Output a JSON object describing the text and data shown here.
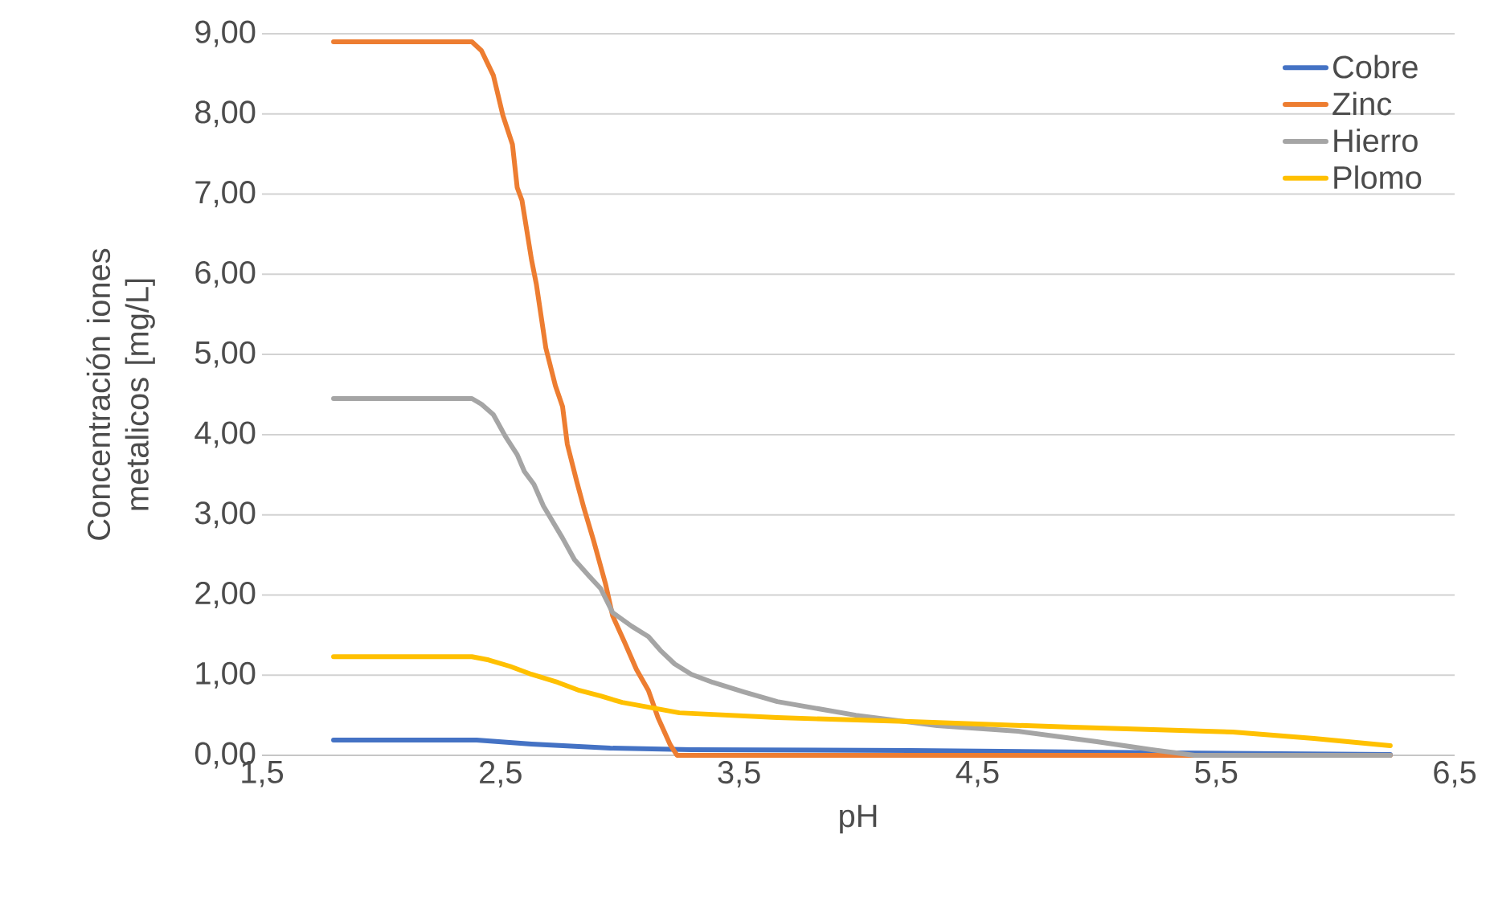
{
  "chart_data": {
    "type": "line",
    "xlabel": "pH",
    "ylabel": "Concentración iones metalicos [mg/L]",
    "xlim": [
      1.5,
      6.5
    ],
    "ylim": [
      0,
      9
    ],
    "xticks": [
      {
        "value": 1.5,
        "label": "1,5"
      },
      {
        "value": 2.5,
        "label": "2,5"
      },
      {
        "value": 3.5,
        "label": "3,5"
      },
      {
        "value": 4.5,
        "label": "4,5"
      },
      {
        "value": 5.5,
        "label": "5,5"
      },
      {
        "value": 6.5,
        "label": "6,5"
      }
    ],
    "yticks": [
      {
        "value": 0,
        "label": "0,00"
      },
      {
        "value": 1,
        "label": "1,00"
      },
      {
        "value": 2,
        "label": "2,00"
      },
      {
        "value": 3,
        "label": "3,00"
      },
      {
        "value": 4,
        "label": "4,00"
      },
      {
        "value": 5,
        "label": "5,00"
      },
      {
        "value": 6,
        "label": "6,00"
      },
      {
        "value": 7,
        "label": "7,00"
      },
      {
        "value": 8,
        "label": "8,00"
      },
      {
        "value": 9,
        "label": "9,00"
      }
    ],
    "grid": "y",
    "legend": "top right",
    "marker": "none",
    "line_style": "solid",
    "series": [
      {
        "name": "Cobre",
        "color": "#4472c4",
        "x": [
          1.8,
          2.4,
          2.63,
          2.96,
          3.3,
          4.22,
          5.34,
          6.23
        ],
        "values": [
          0.19,
          0.19,
          0.14,
          0.09,
          0.07,
          0.06,
          0.03,
          0.01
        ]
      },
      {
        "name": "Zinc",
        "color": "#ed7d31",
        "x": [
          1.8,
          2.38,
          2.42,
          2.47,
          2.51,
          2.55,
          2.57,
          2.59,
          2.63,
          2.65,
          2.69,
          2.73,
          2.76,
          2.78,
          2.82,
          2.85,
          2.89,
          2.94,
          2.97,
          3.02,
          3.07,
          3.12,
          3.16,
          3.21,
          3.24,
          3.3,
          6.23
        ],
        "values": [
          8.9,
          8.9,
          8.79,
          8.48,
          7.98,
          7.62,
          7.08,
          6.92,
          6.18,
          5.88,
          5.08,
          4.61,
          4.35,
          3.88,
          3.41,
          3.08,
          2.68,
          2.14,
          1.74,
          1.41,
          1.07,
          0.81,
          0.47,
          0.14,
          0.0,
          0.0,
          0.0
        ]
      },
      {
        "name": "Hierro",
        "color": "#a5a5a5",
        "x": [
          1.8,
          2.38,
          2.42,
          2.47,
          2.52,
          2.57,
          2.6,
          2.64,
          2.68,
          2.72,
          2.76,
          2.81,
          2.87,
          2.92,
          2.97,
          3.05,
          3.12,
          3.17,
          3.23,
          3.3,
          3.39,
          3.52,
          3.66,
          3.99,
          4.33,
          4.67,
          5.0,
          5.23,
          5.41,
          6.23
        ],
        "values": [
          4.45,
          4.45,
          4.38,
          4.25,
          3.98,
          3.75,
          3.54,
          3.38,
          3.11,
          2.91,
          2.71,
          2.44,
          2.24,
          2.08,
          1.78,
          1.61,
          1.48,
          1.31,
          1.14,
          1.01,
          0.91,
          0.79,
          0.67,
          0.5,
          0.37,
          0.3,
          0.17,
          0.07,
          0.0,
          0.0
        ]
      },
      {
        "name": "Plomo",
        "color": "#ffc000",
        "x": [
          1.8,
          2.38,
          2.45,
          2.54,
          2.63,
          2.74,
          2.83,
          2.92,
          3.01,
          3.14,
          3.25,
          3.32,
          3.66,
          4.22,
          4.9,
          5.57,
          5.91,
          6.23
        ],
        "values": [
          1.23,
          1.23,
          1.19,
          1.11,
          1.01,
          0.91,
          0.81,
          0.74,
          0.66,
          0.59,
          0.53,
          0.52,
          0.47,
          0.42,
          0.35,
          0.29,
          0.21,
          0.12
        ]
      }
    ]
  }
}
